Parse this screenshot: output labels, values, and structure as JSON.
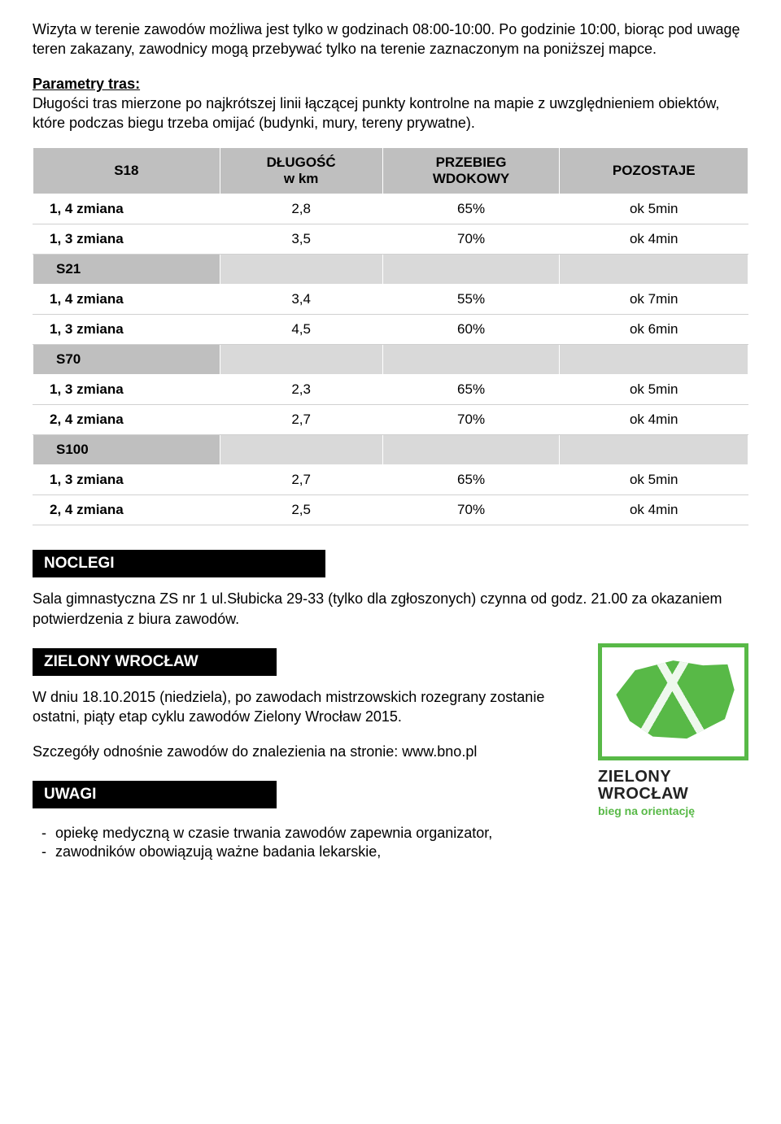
{
  "intro": {
    "p1": "Wizyta w terenie zawodów możliwa jest tylko w godzinach 08:00-10:00. Po godzinie 10:00, biorąc pod uwagę teren zakazany, zawodnicy mogą przebywać tylko na terenie zaznaczonym na poniższej mapce.",
    "params_title": "Parametry tras:",
    "params_text": "Długości tras mierzone po najkrótszej linii łączącej punkty kontrolne na mapie z uwzględnieniem obiektów, które podczas biegu trzeba omijać (budynki, mury, tereny prywatne)."
  },
  "table": {
    "headers": [
      "S18",
      "DŁUGOŚĆ w km",
      "PRZEBIEG WDOKOWY",
      "POZOSTAJE"
    ],
    "header_lines": {
      "col1": [
        "DŁUGOŚĆ",
        "w km"
      ],
      "col2": [
        "PRZEBIEG",
        "WDOKOWY"
      ]
    },
    "sections": [
      {
        "name": null,
        "rows": [
          {
            "label": "1, 4 zmiana",
            "len": "2,8",
            "pct": "65%",
            "rest": "ok 5min"
          },
          {
            "label": "1, 3 zmiana",
            "len": "3,5",
            "pct": "70%",
            "rest": "ok 4min"
          }
        ]
      },
      {
        "name": "S21",
        "rows": [
          {
            "label": "1, 4 zmiana",
            "len": "3,4",
            "pct": "55%",
            "rest": "ok 7min"
          },
          {
            "label": "1, 3 zmiana",
            "len": "4,5",
            "pct": "60%",
            "rest": "ok 6min"
          }
        ]
      },
      {
        "name": "S70",
        "rows": [
          {
            "label": "1, 3 zmiana",
            "len": "2,3",
            "pct": "65%",
            "rest": "ok 5min"
          },
          {
            "label": "2, 4 zmiana",
            "len": "2,7",
            "pct": "70%",
            "rest": "ok 4min"
          }
        ]
      },
      {
        "name": "S100",
        "rows": [
          {
            "label": "1, 3 zmiana",
            "len": "2,7",
            "pct": "65%",
            "rest": "ok 5min"
          },
          {
            "label": "2, 4 zmiana",
            "len": "2,5",
            "pct": "70%",
            "rest": "ok 4min"
          }
        ]
      }
    ]
  },
  "noclegi": {
    "heading": "NOCLEGI",
    "text": "Sala gimnastyczna ZS nr 1 ul.Słubicka 29-33 (tylko dla zgłoszonych) czynna od godz.  21.00 za okazaniem potwierdzenia z biura zawodów."
  },
  "zielony": {
    "heading": "ZIELONY WROCŁAW",
    "p1": "W dniu 18.10.2015 (niedziela), po zawodach mistrzowskich rozegrany zostanie ostatni, piąty etap cyklu zawodów Zielony Wrocław 2015.",
    "p2": "Szczegóły odnośnie zawodów do znalezienia na stronie: www.bno.pl"
  },
  "logo": {
    "title_l1": "ZIELONY",
    "title_l2": "WROCŁAW",
    "sub": "bieg na orientację",
    "green": "#58b947"
  },
  "uwagi": {
    "heading": "UWAGI",
    "items": [
      "opiekę medyczną w czasie trwania zawodów zapewnia organizator,",
      "zawodników obowiązują ważne badania lekarskie,"
    ]
  }
}
